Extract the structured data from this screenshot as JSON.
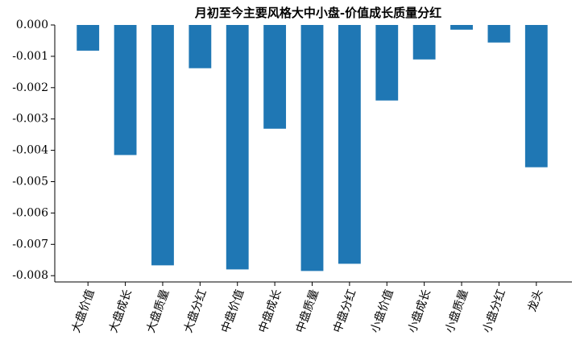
{
  "chart_data": {
    "type": "bar",
    "title": "月初至今主要风格大中小盘-价值成长质量分红",
    "categories": [
      "大盘价值",
      "大盘成长",
      "大盘质量",
      "大盘分红",
      "中盘价值",
      "中盘成长",
      "中盘质量",
      "中盘分红",
      "小盘价值",
      "小盘成长",
      "小盘质量",
      "小盘分红",
      "龙头"
    ],
    "values": [
      -0.00082,
      -0.00415,
      -0.00767,
      -0.00138,
      -0.0078,
      -0.00331,
      -0.00785,
      -0.00762,
      -0.00241,
      -0.0011,
      -0.00015,
      -0.00056,
      -0.00454
    ],
    "color": "#1f77b4",
    "ylim": [
      -0.0082,
      0
    ],
    "yticks": [
      {
        "value": 0,
        "label": "0.000"
      },
      {
        "value": -0.001,
        "label": "-0.001"
      },
      {
        "value": -0.002,
        "label": "-0.002"
      },
      {
        "value": -0.003,
        "label": "-0.003"
      },
      {
        "value": -0.004,
        "label": "-0.004"
      },
      {
        "value": -0.005,
        "label": "-0.005"
      },
      {
        "value": -0.006,
        "label": "-0.006"
      },
      {
        "value": -0.007,
        "label": "-0.007"
      },
      {
        "value": -0.008,
        "label": "-0.008"
      }
    ],
    "grid": false
  }
}
